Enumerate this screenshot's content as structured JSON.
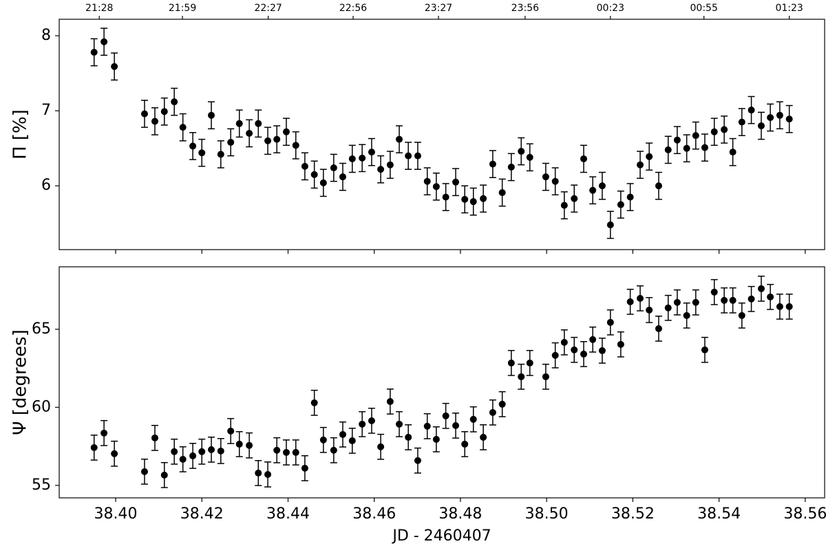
{
  "chart_data": [
    {
      "type": "errorbar",
      "ylabel": "Π [%]",
      "x": [
        38.395,
        38.3973,
        38.3997,
        38.4067,
        38.4091,
        38.4113,
        38.4136,
        38.4156,
        38.4179,
        38.42,
        38.4222,
        38.4244,
        38.4267,
        38.4287,
        38.431,
        38.4331,
        38.4353,
        38.4374,
        38.4396,
        38.4418,
        38.4439,
        38.4461,
        38.4482,
        38.4506,
        38.4527,
        38.4549,
        38.4572,
        38.4594,
        38.4615,
        38.4637,
        38.4658,
        38.4679,
        38.4701,
        38.4723,
        38.4744,
        38.4766,
        38.4789,
        38.481,
        38.483,
        38.4853,
        38.4875,
        38.4897,
        38.4918,
        38.4941,
        38.4961,
        38.4998,
        38.502,
        38.5041,
        38.5064,
        38.5086,
        38.5107,
        38.5129,
        38.5148,
        38.5172,
        38.5194,
        38.5217,
        38.5238,
        38.526,
        38.5282,
        38.5303,
        38.5325,
        38.5346,
        38.5367,
        38.5389,
        38.5412,
        38.5432,
        38.5453,
        38.5475,
        38.5498,
        38.5519,
        38.5541,
        38.5563
      ],
      "series": [
        {
          "color": "#000000",
          "values": [
            7.78,
            7.92,
            7.59,
            6.96,
            6.86,
            6.99,
            7.12,
            6.78,
            6.53,
            6.44,
            6.94,
            6.42,
            6.58,
            6.83,
            6.7,
            6.83,
            6.6,
            6.62,
            6.72,
            6.54,
            6.26,
            6.15,
            6.04,
            6.24,
            6.12,
            6.36,
            6.37,
            6.45,
            6.22,
            6.28,
            6.62,
            6.4,
            6.4,
            6.06,
            5.99,
            5.85,
            6.05,
            5.82,
            5.79,
            5.83,
            6.29,
            5.91,
            6.25,
            6.46,
            6.38,
            6.12,
            6.06,
            5.74,
            5.83,
            6.36,
            5.94,
            6.0,
            5.48,
            5.75,
            5.85,
            6.28,
            6.39,
            6.0,
            6.48,
            6.61,
            6.5,
            6.67,
            6.51,
            6.72,
            6.75,
            6.45,
            6.85,
            7.01,
            6.8,
            6.91,
            6.94,
            6.89
          ],
          "errors": [
            0.18,
            0.18,
            0.18,
            0.18,
            0.18,
            0.18,
            0.18,
            0.18,
            0.18,
            0.18,
            0.18,
            0.18,
            0.18,
            0.18,
            0.18,
            0.18,
            0.18,
            0.18,
            0.18,
            0.18,
            0.18,
            0.18,
            0.18,
            0.18,
            0.18,
            0.18,
            0.18,
            0.18,
            0.18,
            0.18,
            0.18,
            0.18,
            0.18,
            0.18,
            0.18,
            0.18,
            0.18,
            0.18,
            0.18,
            0.18,
            0.18,
            0.18,
            0.18,
            0.18,
            0.18,
            0.18,
            0.18,
            0.18,
            0.18,
            0.18,
            0.18,
            0.18,
            0.18,
            0.18,
            0.18,
            0.18,
            0.18,
            0.18,
            0.18,
            0.18,
            0.18,
            0.18,
            0.18,
            0.18,
            0.18,
            0.18,
            0.18,
            0.18,
            0.18,
            0.18,
            0.18,
            0.18
          ]
        }
      ],
      "xlim": [
        38.3869,
        38.5645
      ],
      "xticks": [
        38.4,
        38.42,
        38.44,
        38.46,
        38.48,
        38.5,
        38.52,
        38.54,
        38.56
      ],
      "top_xticks": [
        {
          "value": 38.3962,
          "label": "21:28"
        },
        {
          "value": 38.4155,
          "label": "21:59"
        },
        {
          "value": 38.4354,
          "label": "22:27"
        },
        {
          "value": 38.4551,
          "label": "22:56"
        },
        {
          "value": 38.4749,
          "label": "23:27"
        },
        {
          "value": 38.495,
          "label": "23:56"
        },
        {
          "value": 38.5148,
          "label": "00:23"
        },
        {
          "value": 38.5365,
          "label": "00:55"
        },
        {
          "value": 38.5563,
          "label": "01:23"
        }
      ],
      "ylim": [
        5.15,
        8.22
      ],
      "yticks": [
        6,
        7,
        8
      ]
    },
    {
      "type": "errorbar",
      "ylabel": "Ψ [degrees]",
      "xlabel": "JD - 2460407",
      "x": [
        38.395,
        38.3973,
        38.3997,
        38.4067,
        38.4091,
        38.4113,
        38.4136,
        38.4156,
        38.4179,
        38.42,
        38.4222,
        38.4244,
        38.4267,
        38.4287,
        38.431,
        38.4331,
        38.4353,
        38.4374,
        38.4396,
        38.4418,
        38.4439,
        38.4461,
        38.4482,
        38.4506,
        38.4527,
        38.4549,
        38.4572,
        38.4594,
        38.4615,
        38.4637,
        38.4658,
        38.4679,
        38.4701,
        38.4723,
        38.4744,
        38.4766,
        38.4789,
        38.481,
        38.483,
        38.4853,
        38.4875,
        38.4897,
        38.4918,
        38.4941,
        38.4961,
        38.4998,
        38.502,
        38.5041,
        38.5064,
        38.5086,
        38.5107,
        38.5129,
        38.5148,
        38.5172,
        38.5194,
        38.5217,
        38.5238,
        38.526,
        38.5282,
        38.5303,
        38.5325,
        38.5346,
        38.5367,
        38.5389,
        38.5412,
        38.5432,
        38.5453,
        38.5475,
        38.5498,
        38.5519,
        38.5541,
        38.5563
      ],
      "series": [
        {
          "color": "#000000",
          "values": [
            57.42,
            58.35,
            57.03,
            55.88,
            58.04,
            55.66,
            57.16,
            56.67,
            56.89,
            57.16,
            57.29,
            57.2,
            58.48,
            57.64,
            57.56,
            55.79,
            55.7,
            57.25,
            57.11,
            57.11,
            56.1,
            60.29,
            57.91,
            57.25,
            58.26,
            57.86,
            58.92,
            59.14,
            57.47,
            60.37,
            58.92,
            58.08,
            56.59,
            58.79,
            57.95,
            59.45,
            58.83,
            57.64,
            59.23,
            58.08,
            59.67,
            60.2,
            62.84,
            61.96,
            62.84,
            61.96,
            63.33,
            64.16,
            63.68,
            63.41,
            64.34,
            63.63,
            65.44,
            64.03,
            66.76,
            66.98,
            66.23,
            65.04,
            66.37,
            66.72,
            65.88,
            66.72,
            63.68,
            67.38,
            66.85,
            66.85,
            65.88,
            66.94,
            67.6,
            67.07,
            66.45,
            66.45
          ],
          "errors": [
            0.8,
            0.8,
            0.8,
            0.8,
            0.8,
            0.8,
            0.8,
            0.8,
            0.8,
            0.8,
            0.8,
            0.8,
            0.8,
            0.8,
            0.8,
            0.8,
            0.8,
            0.8,
            0.8,
            0.8,
            0.8,
            0.8,
            0.8,
            0.8,
            0.8,
            0.8,
            0.8,
            0.8,
            0.8,
            0.8,
            0.8,
            0.8,
            0.8,
            0.8,
            0.8,
            0.8,
            0.8,
            0.8,
            0.8,
            0.8,
            0.8,
            0.8,
            0.8,
            0.8,
            0.8,
            0.8,
            0.8,
            0.8,
            0.8,
            0.8,
            0.8,
            0.8,
            0.8,
            0.8,
            0.8,
            0.8,
            0.8,
            0.8,
            0.8,
            0.8,
            0.8,
            0.8,
            0.8,
            0.8,
            0.8,
            0.8,
            0.8,
            0.8,
            0.8,
            0.8,
            0.8,
            0.8
          ]
        }
      ],
      "xlim": [
        38.3869,
        38.5645
      ],
      "xticks": [
        {
          "value": 38.4,
          "label": "38.40"
        },
        38.42,
        38.44,
        38.46,
        38.48,
        {
          "value": 38.5,
          "label": "38.50"
        },
        38.52,
        38.54,
        38.56
      ],
      "ylim": [
        54.2,
        69.0
      ],
      "yticks": [
        55,
        60,
        65
      ]
    }
  ]
}
